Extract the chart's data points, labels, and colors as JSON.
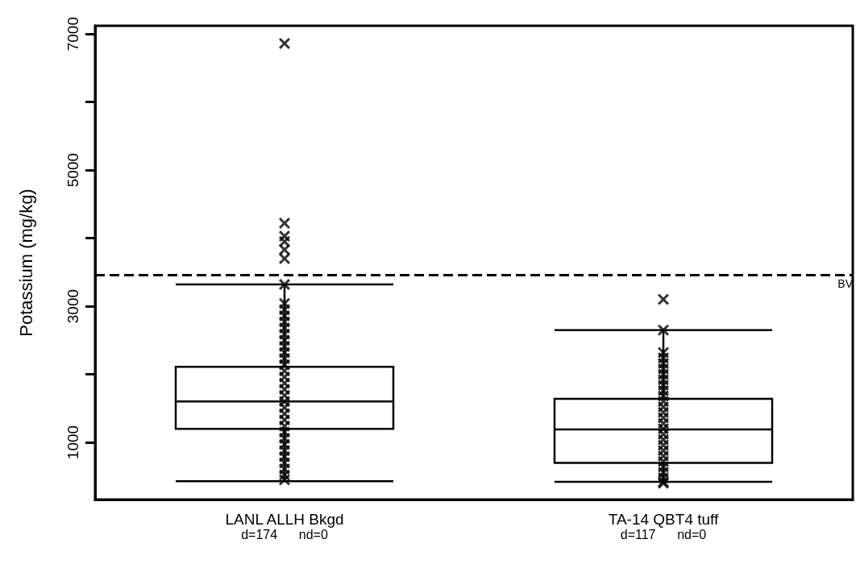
{
  "chart_data": {
    "type": "box",
    "ylabel": "Potassium (mg/kg)",
    "categories": [
      "LANL ALLH Bkgd\nd=174      nd=0",
      "TA-14 QBT4 tuff\nd=117      nd=0"
    ],
    "boxes": [
      {
        "low": 430,
        "q1": 1200,
        "median": 1600,
        "q3": 2110,
        "high": 3320
      },
      {
        "low": 420,
        "q1": 700,
        "median": 1190,
        "q3": 1640,
        "high": 2650
      }
    ],
    "color": "#000000",
    "series": [
      {
        "type": "scatter",
        "color": "#000000",
        "marker": "cross",
        "x": [
          "LANL ALLH Bkgd\nd=174      nd=0",
          "LANL ALLH Bkgd\nd=174      nd=0",
          "LANL ALLH Bkgd\nd=174      nd=0",
          "LANL ALLH Bkgd\nd=174      nd=0",
          "LANL ALLH Bkgd\nd=174      nd=0",
          "LANL ALLH Bkgd\nd=174      nd=0",
          "LANL ALLH Bkgd\nd=174      nd=0",
          "LANL ALLH Bkgd\nd=174      nd=0",
          "LANL ALLH Bkgd\nd=174      nd=0",
          "LANL ALLH Bkgd\nd=174      nd=0",
          "LANL ALLH Bkgd\nd=174      nd=0",
          "LANL ALLH Bkgd\nd=174      nd=0",
          "LANL ALLH Bkgd\nd=174      nd=0",
          "LANL ALLH Bkgd\nd=174      nd=0",
          "LANL ALLH Bkgd\nd=174      nd=0",
          "LANL ALLH Bkgd\nd=174      nd=0",
          "LANL ALLH Bkgd\nd=174      nd=0",
          "LANL ALLH Bkgd\nd=174      nd=0",
          "LANL ALLH Bkgd\nd=174      nd=0",
          "LANL ALLH Bkgd\nd=174      nd=0",
          "LANL ALLH Bkgd\nd=174      nd=0",
          "LANL ALLH Bkgd\nd=174      nd=0",
          "LANL ALLH Bkgd\nd=174      nd=0",
          "LANL ALLH Bkgd\nd=174      nd=0",
          "LANL ALLH Bkgd\nd=174      nd=0",
          "LANL ALLH Bkgd\nd=174      nd=0",
          "LANL ALLH Bkgd\nd=174      nd=0",
          "LANL ALLH Bkgd\nd=174      nd=0",
          "LANL ALLH Bkgd\nd=174      nd=0",
          "LANL ALLH Bkgd\nd=174      nd=0",
          "LANL ALLH Bkgd\nd=174      nd=0",
          "LANL ALLH Bkgd\nd=174      nd=0",
          "LANL ALLH Bkgd\nd=174      nd=0",
          "LANL ALLH Bkgd\nd=174      nd=0",
          "LANL ALLH Bkgd\nd=174      nd=0",
          "LANL ALLH Bkgd\nd=174      nd=0",
          "LANL ALLH Bkgd\nd=174      nd=0"
        ],
        "values": [
          6860,
          4220,
          4030,
          3950,
          3830,
          3700,
          3320,
          3040,
          2950,
          2860,
          2770,
          2680,
          2590,
          2500,
          2410,
          2320,
          2230,
          2140,
          2050,
          1960,
          1870,
          1780,
          1690,
          1600,
          1510,
          1420,
          1330,
          1240,
          1150,
          1060,
          970,
          880,
          790,
          700,
          610,
          520,
          450
        ]
      },
      {
        "type": "scatter",
        "color": "#000000",
        "marker": "cross",
        "x": [
          "TA-14 QBT4 tuff\nd=117      nd=0",
          "TA-14 QBT4 tuff\nd=117      nd=0",
          "TA-14 QBT4 tuff\nd=117      nd=0",
          "TA-14 QBT4 tuff\nd=117      nd=0",
          "TA-14 QBT4 tuff\nd=117      nd=0",
          "TA-14 QBT4 tuff\nd=117      nd=0",
          "TA-14 QBT4 tuff\nd=117      nd=0",
          "TA-14 QBT4 tuff\nd=117      nd=0",
          "TA-14 QBT4 tuff\nd=117      nd=0",
          "TA-14 QBT4 tuff\nd=117      nd=0",
          "TA-14 QBT4 tuff\nd=117      nd=0",
          "TA-14 QBT4 tuff\nd=117      nd=0",
          "TA-14 QBT4 tuff\nd=117      nd=0",
          "TA-14 QBT4 tuff\nd=117      nd=0",
          "TA-14 QBT4 tuff\nd=117      nd=0",
          "TA-14 QBT4 tuff\nd=117      nd=0",
          "TA-14 QBT4 tuff\nd=117      nd=0",
          "TA-14 QBT4 tuff\nd=117      nd=0",
          "TA-14 QBT4 tuff\nd=117      nd=0",
          "TA-14 QBT4 tuff\nd=117      nd=0",
          "TA-14 QBT4 tuff\nd=117      nd=0",
          "TA-14 QBT4 tuff\nd=117      nd=0",
          "TA-14 QBT4 tuff\nd=117      nd=0",
          "TA-14 QBT4 tuff\nd=117      nd=0",
          "TA-14 QBT4 tuff\nd=117      nd=0",
          "TA-14 QBT4 tuff\nd=117      nd=0",
          "TA-14 QBT4 tuff\nd=117      nd=0",
          "TA-14 QBT4 tuff\nd=117      nd=0"
        ],
        "values": [
          3100,
          2650,
          2320,
          2240,
          2160,
          2080,
          2000,
          1920,
          1840,
          1760,
          1680,
          1600,
          1520,
          1440,
          1360,
          1280,
          1200,
          1120,
          1040,
          960,
          880,
          800,
          720,
          640,
          560,
          480,
          420,
          400
        ]
      }
    ],
    "ylim": [
      160,
      7120
    ],
    "yticks": [
      1000,
      {
        "value": 2000,
        "label": null
      },
      3000,
      {
        "value": 4000,
        "label": null
      },
      5000,
      {
        "value": 6000,
        "label": null
      },
      7000
    ],
    "ref_lines": [
      {
        "axis": "y",
        "value": 3460,
        "label": "BV",
        "color": "#000000",
        "line_style": "dashed"
      }
    ],
    "grid": false
  }
}
